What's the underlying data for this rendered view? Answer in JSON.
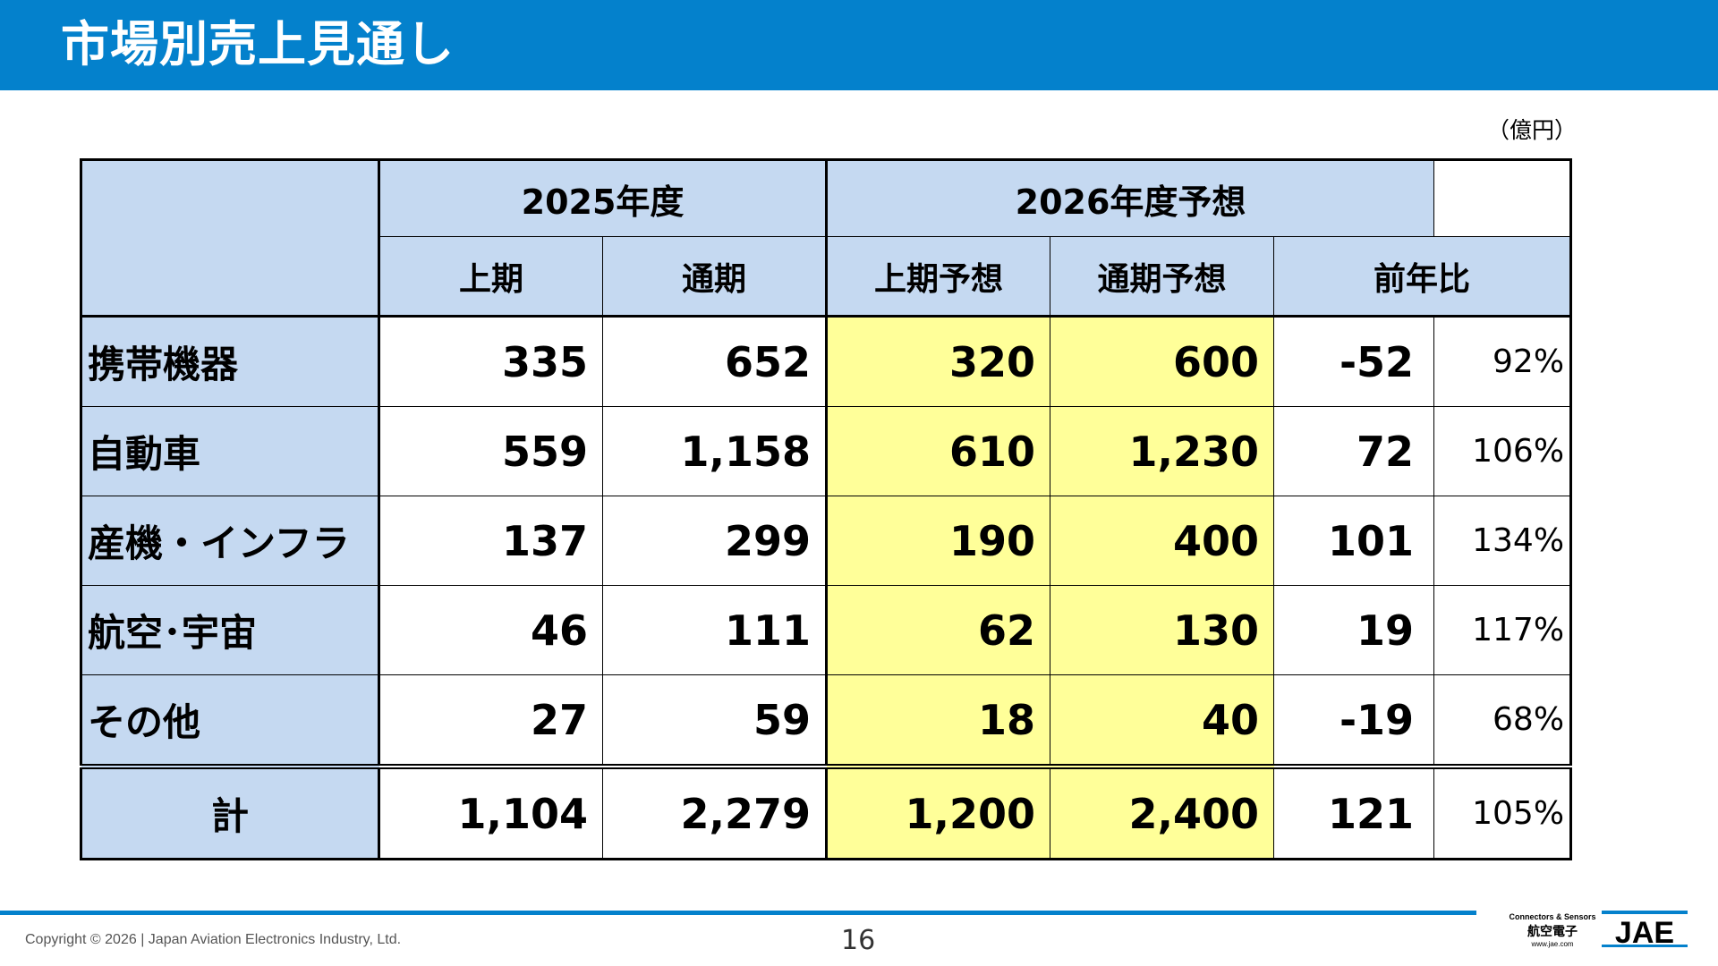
{
  "slide": {
    "title": "市場別売上見通し",
    "unit": "（億円）",
    "page_number": "16",
    "copyright": "Copyright © 2026 | Japan Aviation Electronics Industry, Ltd."
  },
  "logo": {
    "tagline": "Connectors & Sensors",
    "name_jp": "航空電子",
    "url": "www.jae.com",
    "brand": "JAE"
  },
  "colors": {
    "title_bar": "#0481cc",
    "header_fill": "#c5d9f1",
    "forecast_highlight": "#ffff99"
  },
  "table": {
    "group_headers": {
      "fy2025": "2025年度",
      "fy2026": "2026年度予想"
    },
    "sub_headers": {
      "h1": "上期",
      "full": "通期",
      "h1_forecast": "上期予想",
      "full_forecast": "通期予想",
      "yoy": "前年比"
    },
    "rows": [
      {
        "label": "携帯機器",
        "fy2025_h1": "335",
        "fy2025_full": "652",
        "fy2026_h1": "320",
        "fy2026_full": "600",
        "diff": "-52",
        "ratio": "92%"
      },
      {
        "label": "自動車",
        "fy2025_h1": "559",
        "fy2025_full": "1,158",
        "fy2026_h1": "610",
        "fy2026_full": "1,230",
        "diff": "72",
        "ratio": "106%"
      },
      {
        "label": "産機・インフラ",
        "fy2025_h1": "137",
        "fy2025_full": "299",
        "fy2026_h1": "190",
        "fy2026_full": "400",
        "diff": "101",
        "ratio": "134%"
      },
      {
        "label": "航空･宇宙",
        "fy2025_h1": "46",
        "fy2025_full": "111",
        "fy2026_h1": "62",
        "fy2026_full": "130",
        "diff": "19",
        "ratio": "117%"
      },
      {
        "label": "その他",
        "fy2025_h1": "27",
        "fy2025_full": "59",
        "fy2026_h1": "18",
        "fy2026_full": "40",
        "diff": "-19",
        "ratio": "68%"
      }
    ],
    "total": {
      "label": "計",
      "fy2025_h1": "1,104",
      "fy2025_full": "2,279",
      "fy2026_h1": "1,200",
      "fy2026_full": "2,400",
      "diff": "121",
      "ratio": "105%"
    }
  }
}
